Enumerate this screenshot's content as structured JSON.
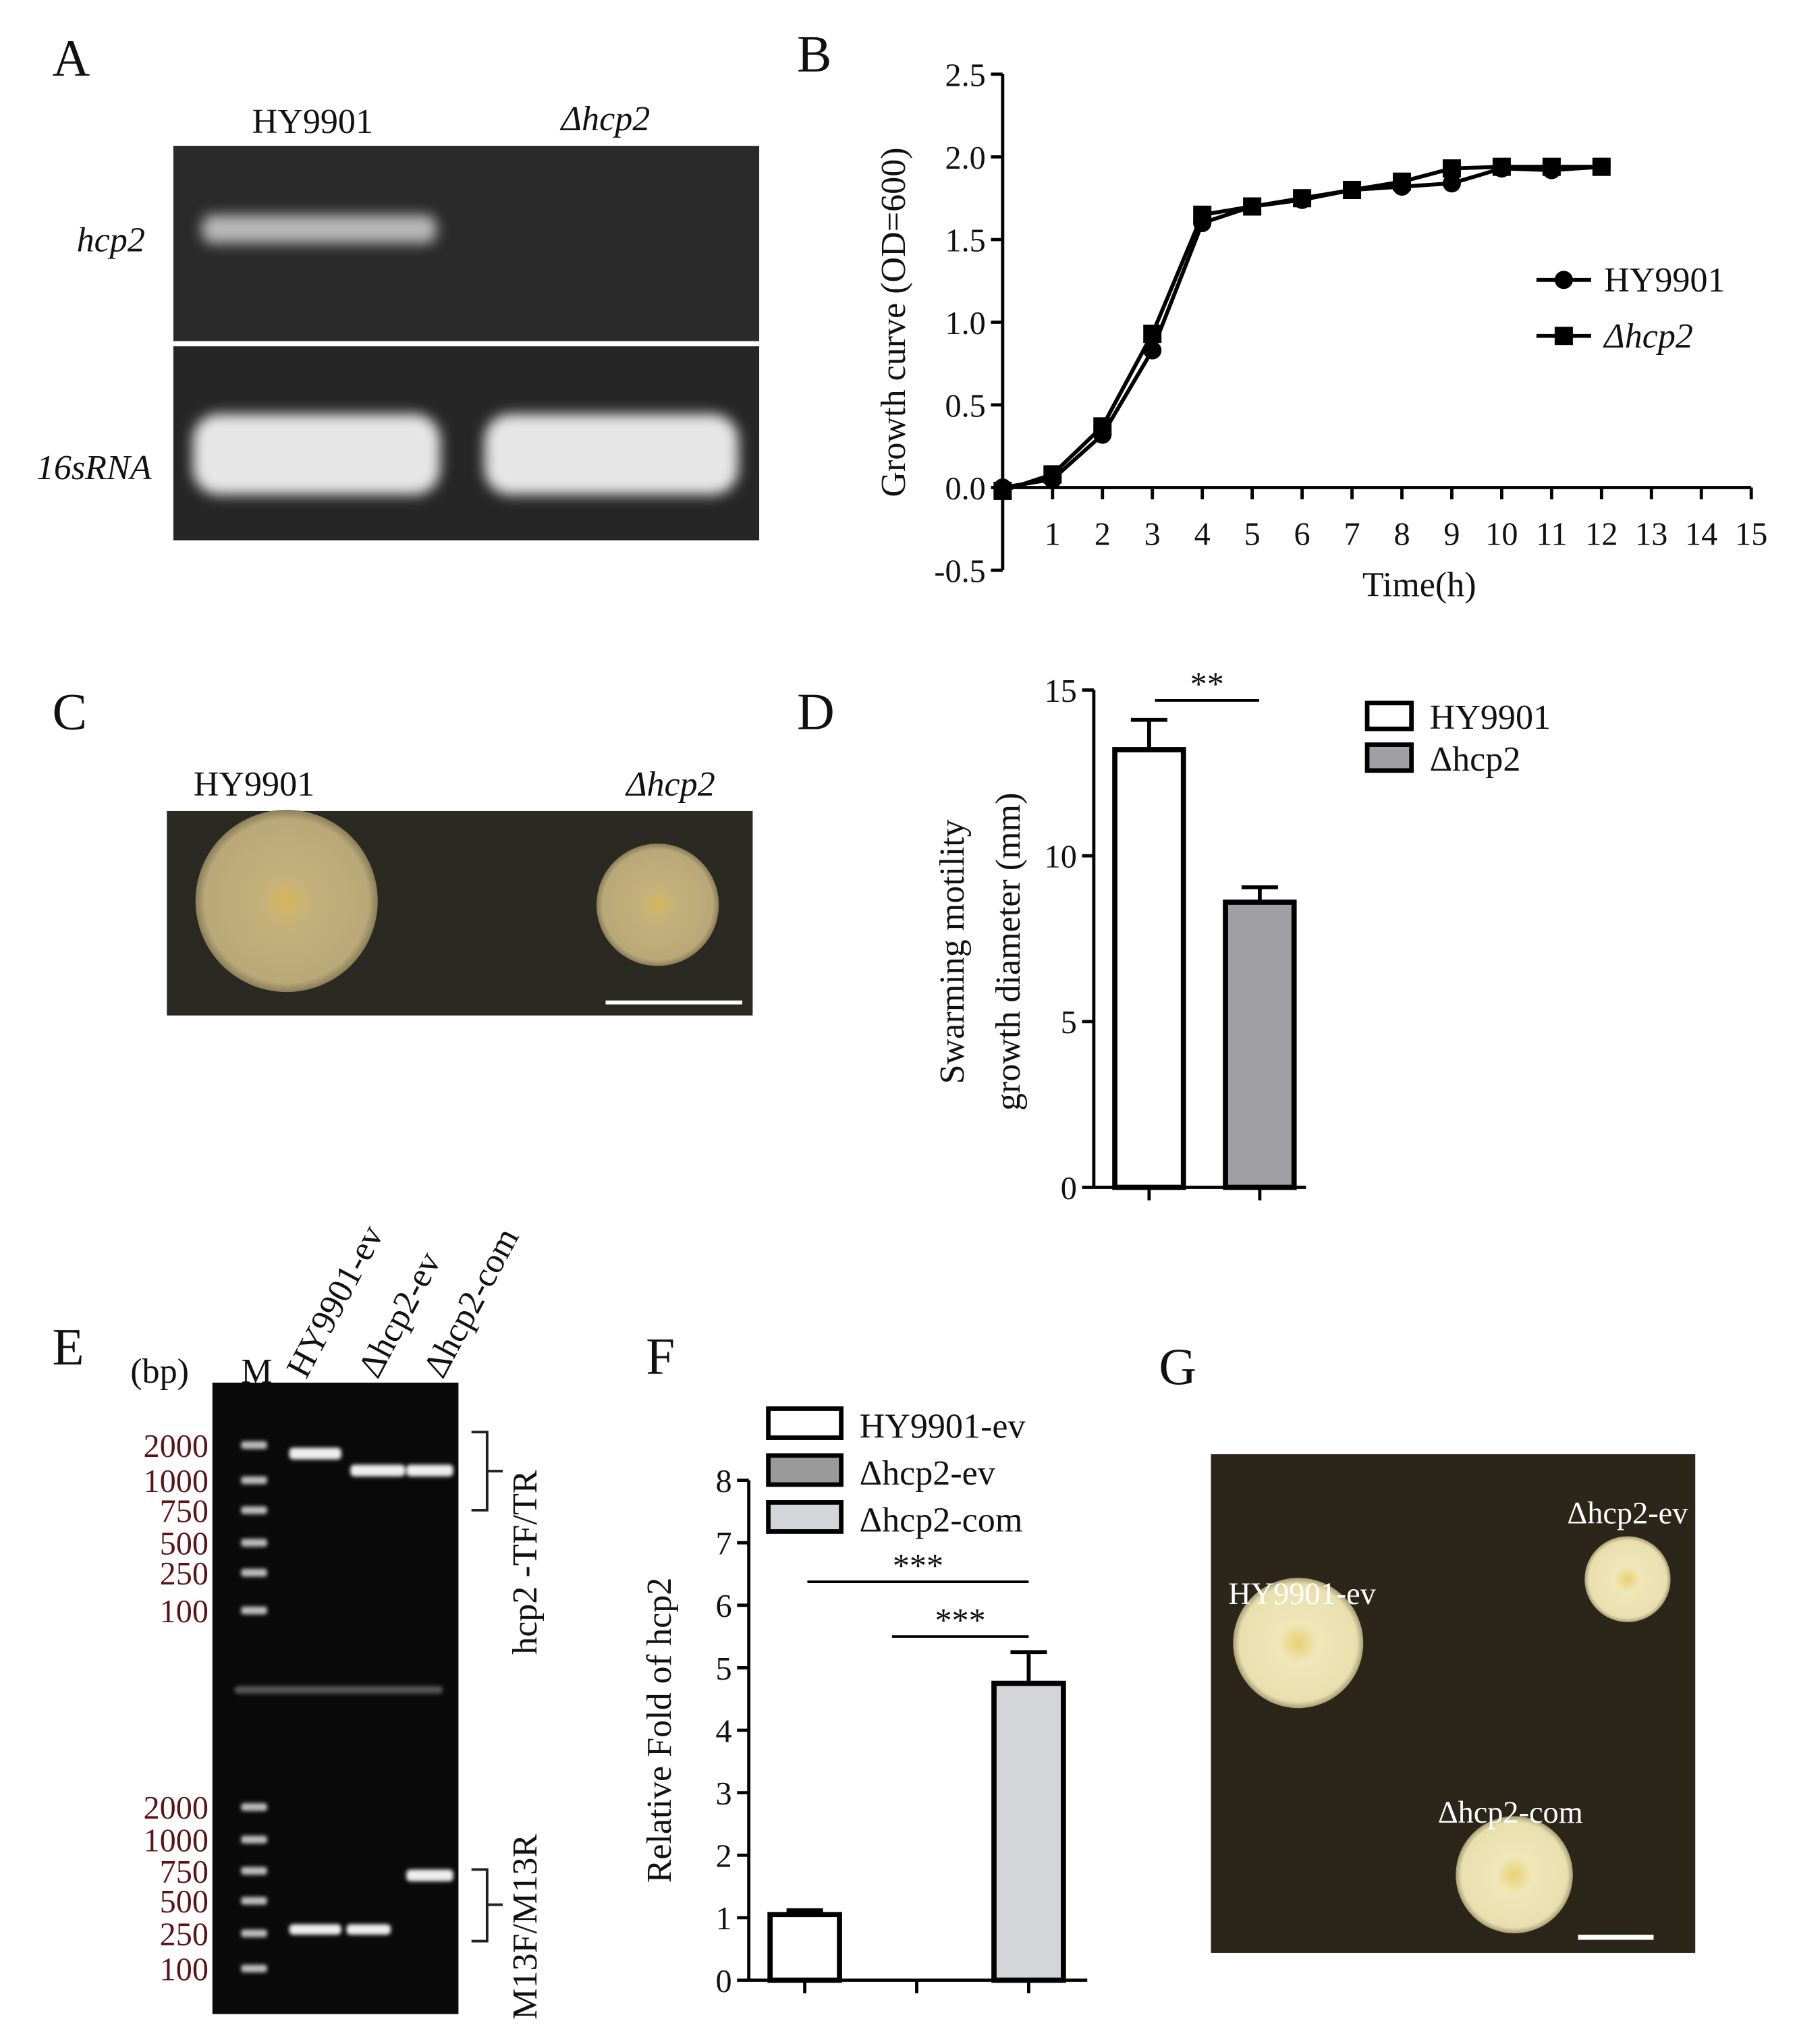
{
  "panel_a": {
    "label": "A",
    "lanes": [
      "HY9901",
      "Δhcp2"
    ],
    "rows": [
      "hcp2",
      "16sRNA"
    ]
  },
  "panel_c": {
    "label": "C",
    "labels": [
      "HY9901",
      "Δhcp2"
    ]
  },
  "panel_e": {
    "label": "E",
    "unit": "(bp)",
    "lanes": [
      "M",
      "HY9901-ev",
      "Δhcp2-ev",
      "Δhcp2-com"
    ],
    "markers_top": [
      "2000",
      "1000",
      "750",
      "500",
      "250",
      "100"
    ],
    "markers_bottom": [
      "2000",
      "1000",
      "750",
      "500",
      "250",
      "100"
    ],
    "primers": [
      "hcp2 -TF/TR",
      "M13F/M13R"
    ]
  },
  "panel_g": {
    "label": "G",
    "labels": [
      "HY9901-ev",
      "Δhcp2-ev",
      "Δhcp2-com"
    ]
  },
  "chart_data": [
    {
      "type": "line",
      "panel_label": "B",
      "x_label": "Time(h)",
      "y_label": "Growth curve (OD=600)",
      "x": [
        0,
        1,
        2,
        3,
        4,
        5,
        6,
        7,
        8,
        9,
        10,
        11,
        12
      ],
      "series": [
        {
          "name": "HY9901",
          "color": "#000000",
          "marker": "circle",
          "values": [
            0.0,
            0.05,
            0.32,
            0.83,
            1.6,
            1.7,
            1.74,
            1.8,
            1.82,
            1.84,
            1.93,
            1.92,
            1.94
          ]
        },
        {
          "name": "Δhcp2",
          "color": "#000000",
          "marker": "square",
          "values": [
            -0.02,
            0.08,
            0.37,
            0.93,
            1.65,
            1.7,
            1.75,
            1.8,
            1.85,
            1.93,
            1.94,
            1.94,
            1.94
          ]
        }
      ],
      "xlim": [
        0,
        15
      ],
      "xticks": [
        1,
        2,
        3,
        4,
        5,
        6,
        7,
        8,
        9,
        10,
        11,
        12,
        13,
        14,
        15
      ],
      "ylim": [
        -0.5,
        2.5
      ],
      "yticks": [
        -0.5,
        {
          "value": 0,
          "label": "0.0"
        },
        0.5,
        {
          "value": 1,
          "label": "1.0"
        },
        1.5,
        {
          "value": 2,
          "label": "2.0"
        },
        2.5
      ],
      "legend": "right"
    },
    {
      "type": "bar",
      "panel_label": "D",
      "y_label": [
        "Swarming motility",
        "growth diameter (mm)"
      ],
      "categories": [
        null,
        null
      ],
      "series": [
        {
          "name": "HY9901",
          "color": "#ffffff",
          "values": [
            13.2,
            null
          ],
          "errors": [
            0.9,
            null
          ]
        },
        {
          "name": "Δhcp2",
          "color": "#a0a0a4",
          "values": [
            null,
            8.6
          ],
          "errors": [
            null,
            0.45
          ]
        }
      ],
      "ylim": [
        0,
        15
      ],
      "yticks": [
        0,
        5,
        10,
        15
      ],
      "annotations": [
        "**"
      ],
      "legend": "upper right"
    },
    {
      "type": "bar",
      "panel_label": "F",
      "y_label": "Relative Fold of hcp2",
      "categories": [
        null,
        null,
        null
      ],
      "series": [
        {
          "name": "HY9901-ev",
          "color": "#ffffff",
          "values": [
            1.05,
            null,
            null
          ],
          "errors": [
            0.07,
            null,
            null
          ]
        },
        {
          "name": "Δhcp2-ev",
          "color": "#9a9a9a",
          "values": [
            null,
            0,
            null
          ],
          "errors": [
            null,
            null,
            null
          ]
        },
        {
          "name": "Δhcp2-com",
          "color": "#d4d5d8",
          "values": [
            null,
            null,
            4.75
          ],
          "errors": [
            null,
            null,
            0.5
          ]
        }
      ],
      "ylim": [
        0,
        8
      ],
      "yticks": [
        0,
        1,
        2,
        3,
        4,
        5,
        6,
        7,
        8
      ],
      "annotations": [
        "***",
        "***"
      ],
      "legend": "upper left"
    }
  ]
}
